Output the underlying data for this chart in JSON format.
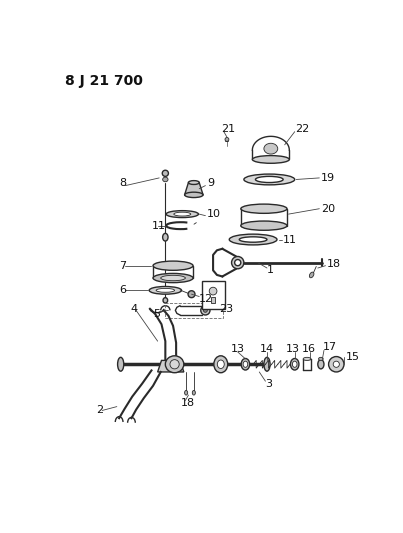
{
  "title": "8 J 21 700",
  "bg_color": "#ffffff",
  "line_color": "#2a2a2a",
  "label_color": "#111111",
  "title_fontsize": 10,
  "label_fontsize": 8,
  "fig_width": 4.03,
  "fig_height": 5.33,
  "dpi": 100
}
